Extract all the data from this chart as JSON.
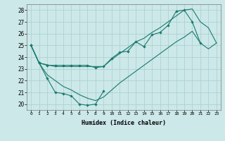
{
  "xlabel": "Humidex (Indice chaleur)",
  "bg_color": "#cce8e8",
  "line_color": "#1a7a6e",
  "grid_color": "#aacece",
  "xlim": [
    -0.5,
    23.5
  ],
  "ylim": [
    19.5,
    28.5
  ],
  "xticks": [
    0,
    1,
    2,
    3,
    4,
    5,
    6,
    7,
    8,
    9,
    10,
    11,
    12,
    13,
    14,
    15,
    16,
    17,
    18,
    19,
    20,
    21,
    22,
    23
  ],
  "yticks": [
    20,
    21,
    22,
    23,
    24,
    25,
    26,
    27,
    28
  ],
  "line1_x": [
    0,
    1,
    2,
    3,
    4,
    5,
    6,
    7,
    8,
    9,
    10,
    11,
    12,
    13,
    14,
    15,
    16,
    17,
    18,
    19,
    20,
    21
  ],
  "line1_y": [
    25.0,
    23.5,
    23.3,
    23.3,
    23.3,
    23.3,
    23.3,
    23.3,
    23.1,
    23.2,
    23.9,
    24.4,
    24.5,
    25.3,
    24.9,
    25.9,
    26.1,
    26.7,
    27.9,
    28.0,
    27.0,
    25.2
  ],
  "line2_x": [
    0,
    1,
    2,
    3,
    4,
    5,
    6,
    7,
    8,
    9
  ],
  "line2_y": [
    25.0,
    23.5,
    22.2,
    21.0,
    20.9,
    20.7,
    20.0,
    19.9,
    20.0,
    21.1
  ],
  "line3_x": [
    0,
    1,
    3,
    9,
    10,
    11,
    12,
    13,
    14,
    15,
    16,
    17,
    18,
    19,
    20,
    21,
    22,
    23
  ],
  "line3_y": [
    25.0,
    23.5,
    23.2,
    23.2,
    23.8,
    24.3,
    24.8,
    25.3,
    25.6,
    26.1,
    26.5,
    27.0,
    27.5,
    28.0,
    28.1,
    27.0,
    26.5,
    25.2
  ],
  "line4_x": [
    0,
    1,
    2,
    3,
    4,
    5,
    6,
    7,
    8,
    9,
    10,
    11,
    12,
    13,
    14,
    15,
    16,
    17,
    18,
    19,
    20,
    21,
    22,
    23
  ],
  "line4_y": [
    25.0,
    23.5,
    22.5,
    22.0,
    21.5,
    21.2,
    20.8,
    20.5,
    20.3,
    20.6,
    21.2,
    21.8,
    22.3,
    22.8,
    23.3,
    23.8,
    24.3,
    24.8,
    25.3,
    25.7,
    26.2,
    25.2,
    24.7,
    25.2
  ]
}
